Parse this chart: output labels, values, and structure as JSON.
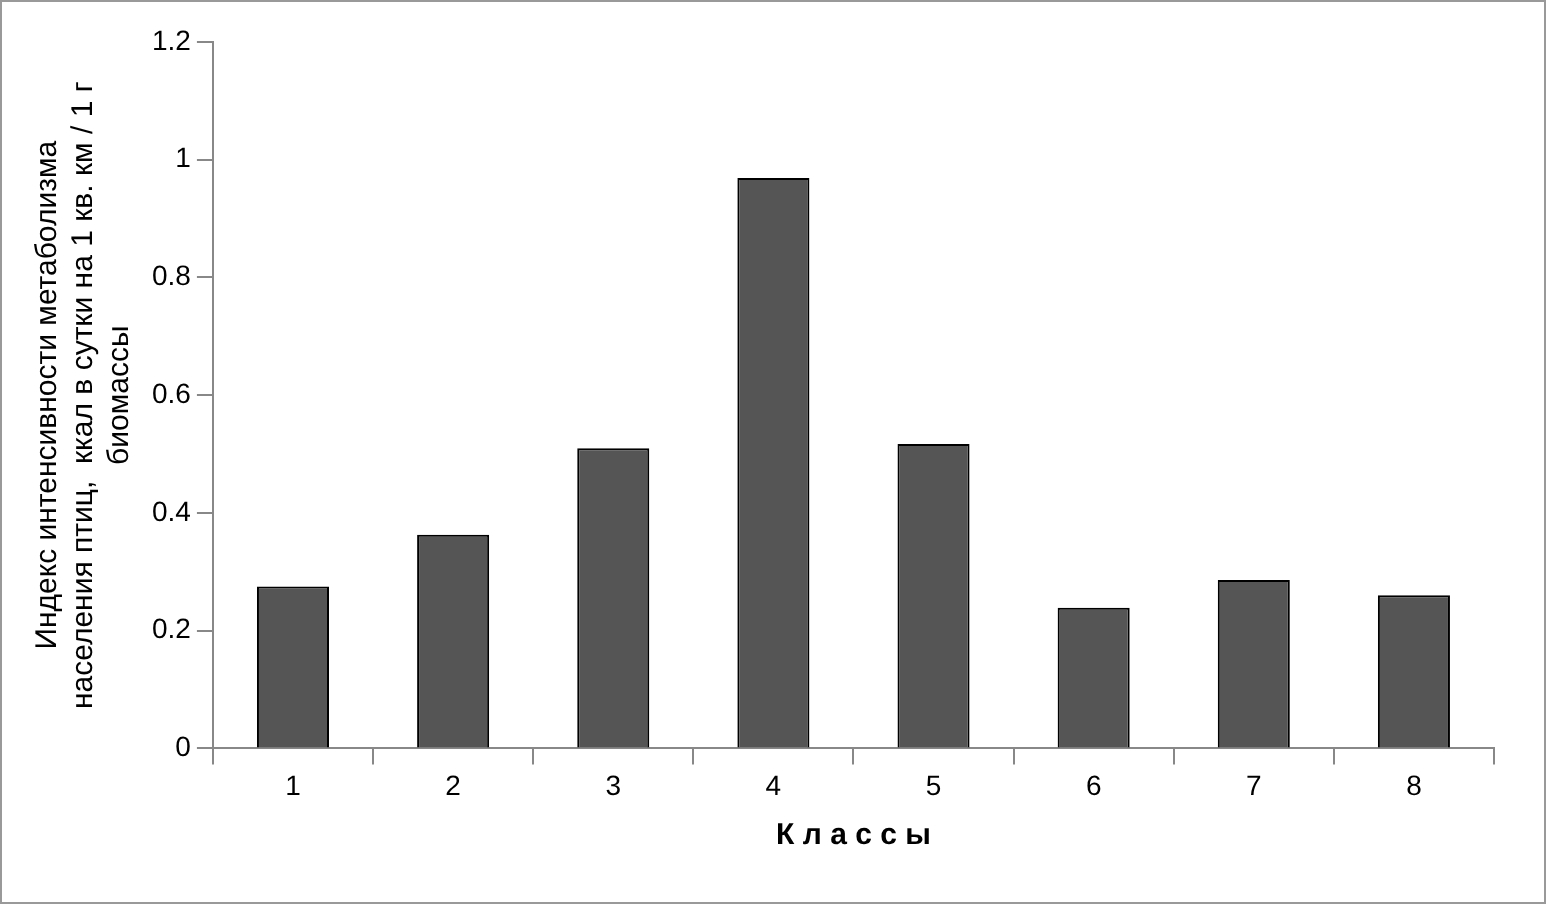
{
  "chart_data": {
    "type": "bar",
    "categories": [
      "1",
      "2",
      "3",
      "4",
      "5",
      "6",
      "7",
      "8"
    ],
    "values": [
      0.275,
      0.363,
      0.51,
      0.969,
      0.517,
      0.239,
      0.286,
      0.26
    ],
    "color": "#555555",
    "ylim": [
      0,
      1.2
    ],
    "yticks": [
      0,
      0.2,
      0.4,
      0.6,
      0.8,
      1,
      1.2
    ],
    "xlabel": "К л а с с ы",
    "ylabel": "Индекс интенсивности метаболизма населения птиц,  ккал в сутки на 1 кв. км / 1 г биомассы",
    "grid": false,
    "legend": false
  }
}
